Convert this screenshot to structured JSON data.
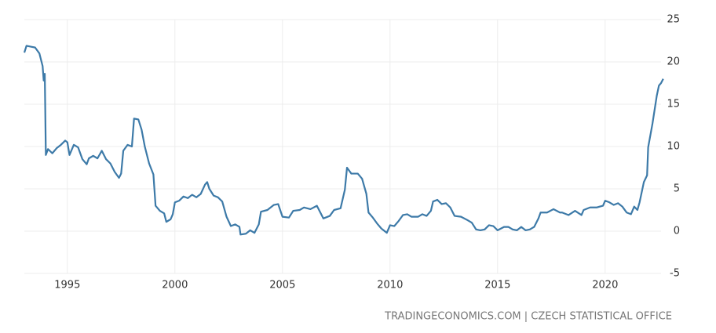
{
  "chart_data": {
    "type": "line",
    "source": "TRADINGECONOMICS.COM | CZECH STATISTICAL OFFICE",
    "x": [
      1993.0,
      1993.1,
      1993.3,
      1993.5,
      1993.7,
      1993.85,
      1993.9,
      1993.95,
      1994.0,
      1994.1,
      1994.3,
      1994.5,
      1994.7,
      1994.9,
      1995.0,
      1995.1,
      1995.3,
      1995.5,
      1995.7,
      1995.9,
      1996.0,
      1996.2,
      1996.4,
      1996.6,
      1996.8,
      1997.0,
      1997.2,
      1997.4,
      1997.5,
      1997.6,
      1997.8,
      1998.0,
      1998.1,
      1998.3,
      1998.45,
      1998.6,
      1998.8,
      1999.0,
      1999.1,
      1999.3,
      1999.5,
      1999.6,
      1999.8,
      1999.9,
      2000.0,
      2000.2,
      2000.4,
      2000.6,
      2000.8,
      2001.0,
      2001.2,
      2001.4,
      2001.5,
      2001.6,
      2001.8,
      2002.0,
      2002.2,
      2002.4,
      2002.6,
      2002.8,
      2003.0,
      2003.05,
      2003.3,
      2003.5,
      2003.7,
      2003.9,
      2004.0,
      2004.3,
      2004.6,
      2004.8,
      2005.0,
      2005.3,
      2005.5,
      2005.8,
      2006.0,
      2006.3,
      2006.6,
      2006.9,
      2007.2,
      2007.4,
      2007.7,
      2007.9,
      2008.0,
      2008.2,
      2008.5,
      2008.7,
      2008.9,
      2009.0,
      2009.2,
      2009.4,
      2009.6,
      2009.85,
      2010.0,
      2010.2,
      2010.4,
      2010.6,
      2010.8,
      2011.0,
      2011.3,
      2011.5,
      2011.7,
      2011.9,
      2012.0,
      2012.2,
      2012.4,
      2012.6,
      2012.8,
      2013.0,
      2013.3,
      2013.6,
      2013.8,
      2014.0,
      2014.2,
      2014.4,
      2014.6,
      2014.8,
      2015.0,
      2015.3,
      2015.5,
      2015.7,
      2015.9,
      2016.1,
      2016.3,
      2016.5,
      2016.7,
      2016.9,
      2017.0,
      2017.3,
      2017.6,
      2017.9,
      2018.0,
      2018.3,
      2018.6,
      2018.9,
      2019.0,
      2019.3,
      2019.6,
      2019.9,
      2020.0,
      2020.2,
      2020.4,
      2020.6,
      2020.8,
      2021.0,
      2021.2,
      2021.35,
      2021.5,
      2021.6,
      2021.8,
      2021.95,
      2022.0,
      2022.2,
      2022.4,
      2022.5,
      2022.6,
      2022.7
    ],
    "series": [
      {
        "color": "#3d7aa8",
        "values": [
          21.1,
          21.9,
          21.8,
          21.7,
          21.0,
          19.5,
          17.8,
          18.6,
          9.0,
          9.7,
          9.2,
          9.8,
          10.2,
          10.7,
          10.5,
          9.0,
          10.2,
          9.9,
          8.5,
          7.9,
          8.6,
          8.9,
          8.6,
          9.5,
          8.5,
          8.0,
          7.0,
          6.3,
          6.8,
          9.5,
          10.2,
          10.0,
          13.3,
          13.2,
          12.0,
          10.0,
          8.0,
          6.7,
          3.0,
          2.4,
          2.1,
          1.1,
          1.4,
          2.0,
          3.4,
          3.6,
          4.1,
          3.9,
          4.3,
          4.0,
          4.4,
          5.5,
          5.8,
          5.0,
          4.2,
          4.0,
          3.5,
          1.7,
          0.6,
          0.8,
          0.5,
          -0.4,
          -0.3,
          0.1,
          -0.2,
          0.8,
          2.3,
          2.5,
          3.1,
          3.2,
          1.7,
          1.6,
          2.4,
          2.5,
          2.8,
          2.6,
          3.0,
          1.5,
          1.8,
          2.5,
          2.7,
          4.9,
          7.5,
          6.8,
          6.8,
          6.2,
          4.4,
          2.2,
          1.6,
          0.9,
          0.3,
          -0.2,
          0.7,
          0.6,
          1.2,
          1.9,
          2.0,
          1.7,
          1.7,
          2.0,
          1.8,
          2.4,
          3.5,
          3.7,
          3.2,
          3.3,
          2.8,
          1.8,
          1.7,
          1.3,
          1.0,
          0.2,
          0.1,
          0.2,
          0.7,
          0.6,
          0.1,
          0.5,
          0.5,
          0.2,
          0.1,
          0.5,
          0.1,
          0.2,
          0.5,
          1.5,
          2.2,
          2.2,
          2.6,
          2.2,
          2.2,
          1.9,
          2.4,
          1.9,
          2.5,
          2.8,
          2.8,
          3.0,
          3.6,
          3.4,
          3.1,
          3.3,
          2.9,
          2.2,
          2.0,
          2.9,
          2.5,
          3.4,
          5.8,
          6.6,
          9.9,
          12.7,
          16.0,
          17.2,
          17.5,
          18.0
        ]
      }
    ],
    "xlim": [
      1993,
      2023
    ],
    "xticks": [
      1995,
      2000,
      2005,
      2010,
      2015,
      2020
    ],
    "ylim": [
      -5,
      25
    ],
    "yticks": [
      -5,
      0,
      5,
      10,
      15,
      20,
      25
    ],
    "grid": true
  }
}
